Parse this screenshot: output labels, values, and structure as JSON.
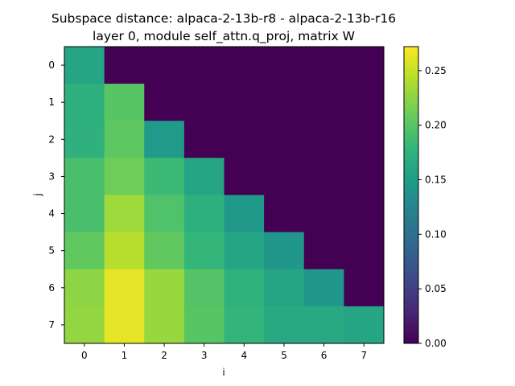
{
  "chart_data": {
    "type": "heatmap",
    "title_line1": "Subspace distance: alpaca-2-13b-r8 - alpaca-2-13b-r16",
    "title_line2": "layer 0, module self_attn.q_proj, matrix W",
    "xlabel": "i",
    "ylabel": "j",
    "x_categories": [
      "0",
      "1",
      "2",
      "3",
      "4",
      "5",
      "6",
      "7"
    ],
    "y_categories": [
      "0",
      "1",
      "2",
      "3",
      "4",
      "5",
      "6",
      "7"
    ],
    "values": [
      [
        0.16,
        0.0,
        0.0,
        0.0,
        0.0,
        0.0,
        0.0,
        0.0
      ],
      [
        0.172,
        0.2,
        0.0,
        0.0,
        0.0,
        0.0,
        0.0,
        0.0
      ],
      [
        0.173,
        0.203,
        0.148,
        0.0,
        0.0,
        0.0,
        0.0,
        0.0
      ],
      [
        0.192,
        0.212,
        0.185,
        0.16,
        0.0,
        0.0,
        0.0,
        0.0
      ],
      [
        0.192,
        0.232,
        0.196,
        0.172,
        0.145,
        0.0,
        0.0,
        0.0
      ],
      [
        0.205,
        0.243,
        0.205,
        0.18,
        0.16,
        0.142,
        0.0,
        0.0
      ],
      [
        0.225,
        0.262,
        0.23,
        0.198,
        0.175,
        0.16,
        0.143,
        0.0
      ],
      [
        0.228,
        0.262,
        0.23,
        0.2,
        0.178,
        0.165,
        0.165,
        0.16
      ]
    ],
    "colormap": "viridis",
    "vmin": 0.0,
    "vmax": 0.272,
    "colorbar_ticks": [
      "0.00",
      "0.05",
      "0.10",
      "0.15",
      "0.20",
      "0.25"
    ],
    "colorbar_tick_values": [
      0.0,
      0.05,
      0.1,
      0.15,
      0.2,
      0.25
    ]
  }
}
